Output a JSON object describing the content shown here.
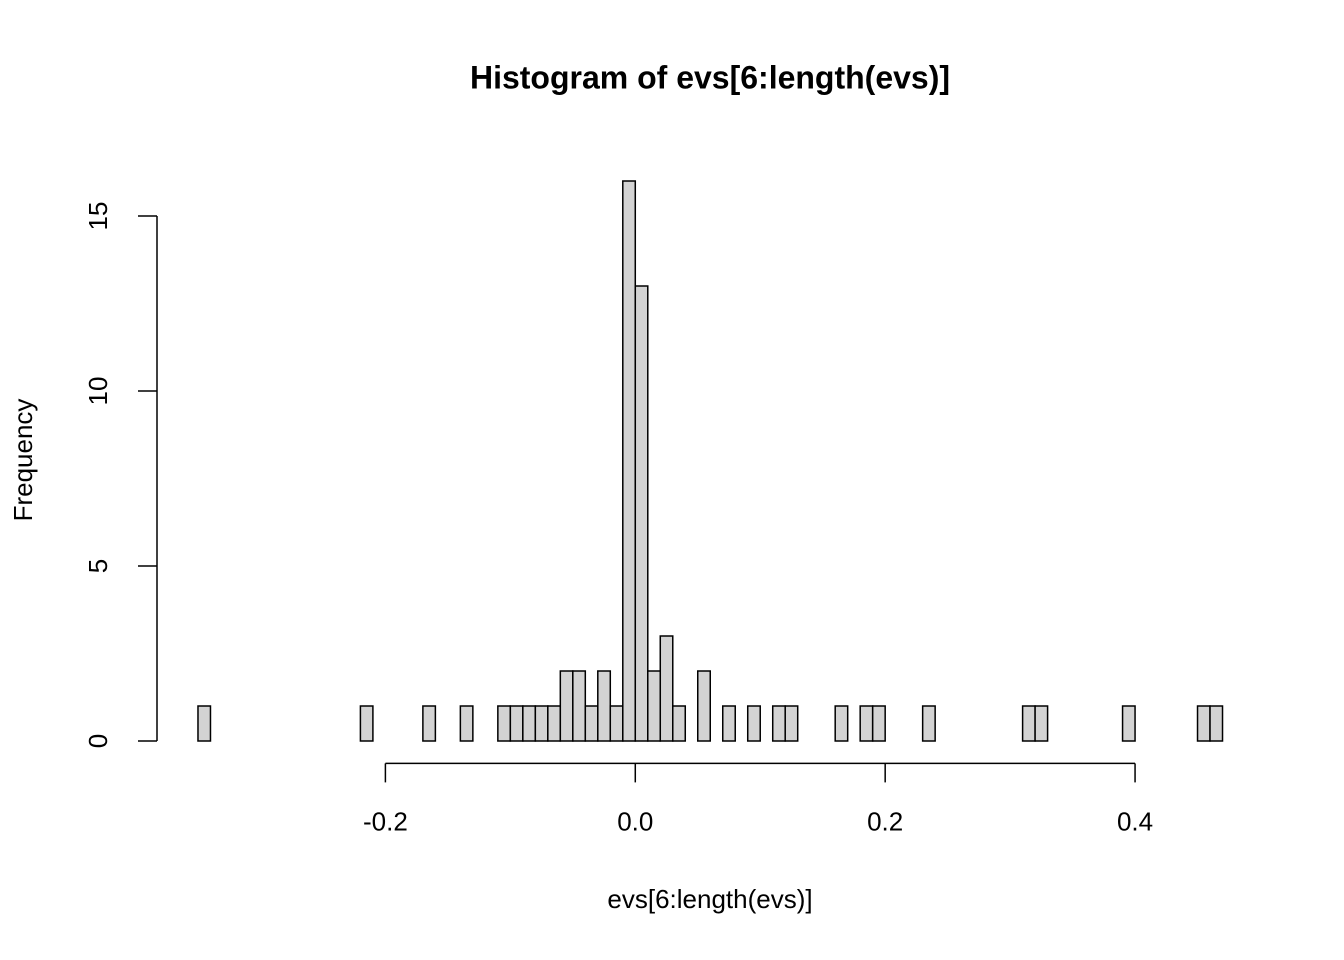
{
  "chart_data": {
    "type": "histogram",
    "title": "Histogram of evs[6:length(evs)]",
    "x_label": "evs[6:length(evs)]",
    "y_label": "Frequency",
    "bins": [
      -0.35,
      -0.34,
      -0.33,
      -0.32,
      -0.31,
      -0.3,
      -0.29,
      -0.28,
      -0.27,
      -0.26,
      -0.25,
      -0.24,
      -0.23,
      -0.22,
      -0.21,
      -0.2,
      -0.19,
      -0.18,
      -0.17,
      -0.16,
      -0.15,
      -0.14,
      -0.13,
      -0.12,
      -0.11,
      -0.1,
      -0.09,
      -0.08,
      -0.07,
      -0.06,
      -0.05,
      -0.04,
      -0.03,
      -0.02,
      -0.01,
      0,
      0.01,
      0.02,
      0.03,
      0.04,
      0.05,
      0.06,
      0.07,
      0.08,
      0.09,
      0.1,
      0.11,
      0.12,
      0.13,
      0.14,
      0.15,
      0.16,
      0.17,
      0.18,
      0.19,
      0.2,
      0.21,
      0.22,
      0.23,
      0.24,
      0.25,
      0.26,
      0.27,
      0.28,
      0.29,
      0.3,
      0.31,
      0.32,
      0.33,
      0.34,
      0.35,
      0.36,
      0.37,
      0.38,
      0.39,
      0.4,
      0.41,
      0.42,
      0.43,
      0.44,
      0.45,
      0.46,
      0.47
    ],
    "values": [
      1,
      0,
      0,
      0,
      0,
      0,
      0,
      0,
      0,
      0,
      0,
      0,
      0,
      1,
      0,
      0,
      0,
      0,
      1,
      0,
      0,
      1,
      0,
      0,
      1,
      1,
      1,
      1,
      1,
      2,
      2,
      1,
      2,
      1,
      16,
      13,
      2,
      3,
      1,
      0,
      2,
      0,
      1,
      0,
      1,
      0,
      1,
      1,
      0,
      0,
      0,
      1,
      0,
      1,
      1,
      0,
      0,
      0,
      1,
      0,
      0,
      0,
      0,
      0,
      0,
      0,
      1,
      1,
      0,
      0,
      0,
      0,
      0,
      0,
      1,
      0,
      0,
      0,
      0,
      0,
      1,
      1
    ],
    "color": "#d3d3d3",
    "edge_color": "#000000",
    "xlim": [
      -0.3828,
      0.5028
    ],
    "xticks": [
      -0.2,
      {
        "value": 0,
        "label": "0.0"
      },
      0.2,
      0.4
    ],
    "ylim": [
      -0.64,
      16.64
    ],
    "yticks": [
      0,
      5,
      10,
      15
    ]
  }
}
